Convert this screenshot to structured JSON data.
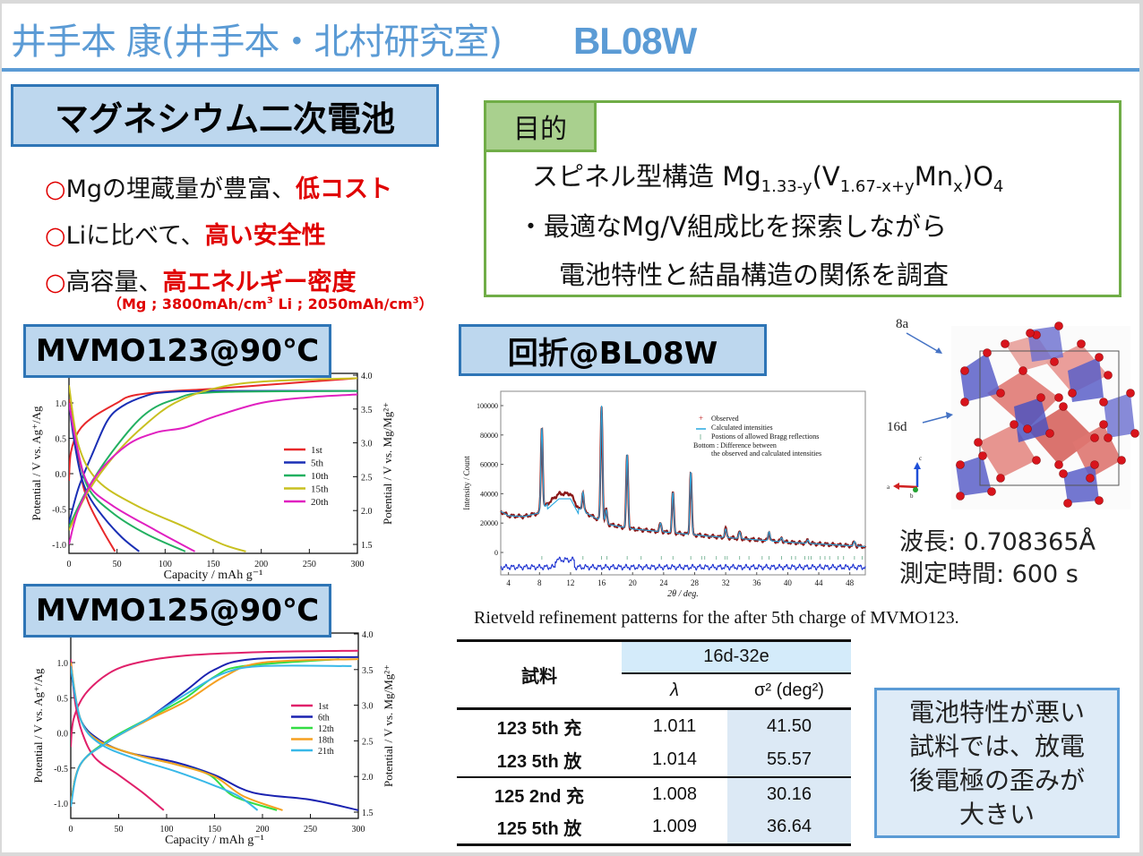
{
  "header": {
    "title": "井手本 康(井手本・北村研究室)",
    "beamline": "BL08W"
  },
  "intro": {
    "heading": "マグネシウム二次電池",
    "bullets": [
      {
        "marker": "○",
        "text": "Mgの埋蔵量が豊富、",
        "highlight": "低コスト"
      },
      {
        "marker": "○",
        "text": "Liに比べて、",
        "highlight": "高い安全性"
      },
      {
        "marker": "○",
        "text": "高容量、",
        "highlight": "高エネルギー密度"
      }
    ],
    "note": {
      "open": "（Mg ; 3800mAh/cm",
      "sup1": "3",
      "mid": " Li ; 2050mAh/cm",
      "sup2": "3",
      "close": "）"
    }
  },
  "purpose": {
    "tag": "目的",
    "line1_prefix": "スピネル型構造 Mg",
    "line1_sub1": "1.33-y",
    "line1_mid1": "(V",
    "line1_sub2": "1.67-x+y",
    "line1_mid2": "Mn",
    "line1_sub3": "x",
    "line1_mid3": ")O",
    "line1_sub4": "4",
    "line2": "・最適なMg/V組成比を探索しながら",
    "line3": "電池特性と結晶構造の関係を調査"
  },
  "sections": {
    "mvmo123": "MVMO123@90℃",
    "mvmo125": "MVMO125@90℃",
    "xrd": "回折@BL08W"
  },
  "structure": {
    "label_8a": "8a",
    "label_16d": "16d",
    "axis_c": "c",
    "axis_a": "a",
    "axis_b": "b"
  },
  "measurement": {
    "wavelength": "波長: 0.708365Å",
    "time": "測定時間: 600 s"
  },
  "caption": "Rietveld refinement patterns for the after 5th charge of MVMO123.",
  "table": {
    "col_sample": "試料",
    "group": "16d-32e",
    "col_lambda": "λ",
    "col_sigma": "σ² (deg²)",
    "rows": [
      {
        "sample": "123 5th 充",
        "lambda": "1.011",
        "sigma": "41.50"
      },
      {
        "sample": "123 5th 放",
        "lambda": "1.014",
        "sigma": "55.57"
      },
      {
        "sample": "125 2nd 充",
        "lambda": "1.008",
        "sigma": "30.16"
      },
      {
        "sample": "125 5th 放",
        "lambda": "1.009",
        "sigma": "36.64"
      }
    ]
  },
  "conclusion": [
    "電池特性が悪い",
    "試料では、放電",
    "後電極の歪みが",
    "大きい"
  ],
  "chart_data": [
    {
      "type": "line",
      "title": "MVMO123@90℃",
      "xlabel": "Capacity / mAh g-1",
      "ylabel": "Potential / V vs. Ag+/Ag",
      "ylabel_right": "Potential / V vs. Mg/Mg2+",
      "xlim": [
        0,
        300
      ],
      "ylim": [
        -1.1,
        1.35
      ],
      "ylim_right": [
        1.4,
        4.0
      ],
      "xticks": [
        0,
        50,
        100,
        150,
        200,
        250,
        300
      ],
      "yticks": [
        -1.0,
        -0.5,
        0.0,
        0.5,
        1.0
      ],
      "yticks_right": [
        1.5,
        2.0,
        2.5,
        3.0,
        3.5,
        4.0
      ],
      "legend_position": "right-middle",
      "series": [
        {
          "name": "1st",
          "color": "#e8282a",
          "charge": [
            [
              0,
              -0.1
            ],
            [
              2,
              0.3
            ],
            [
              10,
              0.6
            ],
            [
              25,
              0.8
            ],
            [
              50,
              1.0
            ],
            [
              65,
              1.1
            ],
            [
              100,
              1.16
            ],
            [
              150,
              1.2
            ],
            [
              200,
              1.25
            ],
            [
              250,
              1.3
            ],
            [
              300,
              1.35
            ]
          ],
          "discharge": [
            [
              0,
              1.05
            ],
            [
              5,
              0.6
            ],
            [
              12,
              0.0
            ],
            [
              20,
              -0.4
            ],
            [
              35,
              -0.8
            ],
            [
              48,
              -1.1
            ]
          ]
        },
        {
          "name": "5th",
          "color": "#1a2fb5",
          "charge": [
            [
              0,
              -0.7
            ],
            [
              10,
              -0.2
            ],
            [
              25,
              0.3
            ],
            [
              40,
              0.75
            ],
            [
              55,
              0.95
            ],
            [
              80,
              1.1
            ],
            [
              100,
              1.15
            ],
            [
              150,
              1.17
            ],
            [
              300,
              1.17
            ]
          ],
          "discharge": [
            [
              0,
              1.0
            ],
            [
              5,
              0.5
            ],
            [
              12,
              0.0
            ],
            [
              20,
              -0.3
            ],
            [
              35,
              -0.6
            ],
            [
              55,
              -0.9
            ],
            [
              73,
              -1.1
            ]
          ]
        },
        {
          "name": "10th",
          "color": "#22b060",
          "charge": [
            [
              0,
              -0.75
            ],
            [
              20,
              -0.2
            ],
            [
              50,
              0.4
            ],
            [
              80,
              0.85
            ],
            [
              110,
              1.05
            ],
            [
              150,
              1.15
            ],
            [
              300,
              1.17
            ]
          ],
          "discharge": [
            [
              0,
              1.0
            ],
            [
              8,
              0.4
            ],
            [
              20,
              -0.2
            ],
            [
              45,
              -0.55
            ],
            [
              80,
              -0.85
            ],
            [
              121,
              -1.1
            ]
          ]
        },
        {
          "name": "15th",
          "color": "#c8c020",
          "charge": [
            [
              0,
              -0.8
            ],
            [
              20,
              -0.25
            ],
            [
              50,
              0.3
            ],
            [
              80,
              0.7
            ],
            [
              110,
              1.0
            ],
            [
              150,
              1.2
            ],
            [
              200,
              1.3
            ],
            [
              300,
              1.35
            ]
          ],
          "discharge": [
            [
              0,
              1.25
            ],
            [
              10,
              0.4
            ],
            [
              30,
              -0.1
            ],
            [
              70,
              -0.45
            ],
            [
              120,
              -0.75
            ],
            [
              160,
              -1.0
            ],
            [
              184,
              -1.1
            ]
          ]
        },
        {
          "name": "20th",
          "color": "#e020c0",
          "charge": [
            [
              0,
              -1.0
            ],
            [
              10,
              -0.5
            ],
            [
              30,
              0.0
            ],
            [
              60,
              0.4
            ],
            [
              90,
              0.58
            ],
            [
              120,
              0.65
            ],
            [
              150,
              0.8
            ],
            [
              200,
              1.0
            ],
            [
              250,
              1.08
            ],
            [
              300,
              1.12
            ]
          ],
          "discharge": [
            [
              0,
              1.0
            ],
            [
              8,
              0.4
            ],
            [
              20,
              -0.15
            ],
            [
              45,
              -0.45
            ],
            [
              90,
              -0.8
            ],
            [
              131,
              -1.1
            ]
          ]
        }
      ]
    },
    {
      "type": "line",
      "title": "MVMO125@90℃",
      "xlabel": "Capacity / mAh g-1",
      "ylabel": "Potential / V vs. Ag+/Ag",
      "ylabel_right": "Potential / V vs. Mg/Mg2+",
      "xlim": [
        0,
        300
      ],
      "ylim": [
        -1.15,
        1.4
      ],
      "ylim_right": [
        1.4,
        4.0
      ],
      "xticks": [
        0,
        50,
        100,
        150,
        200,
        250,
        300
      ],
      "yticks": [
        -1.0,
        -0.5,
        0.0,
        0.5,
        1.0
      ],
      "yticks_right": [
        1.5,
        2.0,
        2.5,
        3.0,
        3.5,
        4.0
      ],
      "legend_position": "right-middle",
      "series": [
        {
          "name": "1st",
          "color": "#e0206a",
          "charge": [
            [
              0,
              -0.2
            ],
            [
              3,
              0.2
            ],
            [
              15,
              0.55
            ],
            [
              40,
              0.85
            ],
            [
              70,
              1.0
            ],
            [
              120,
              1.1
            ],
            [
              200,
              1.15
            ],
            [
              300,
              1.17
            ]
          ],
          "discharge": [
            [
              0,
              1.05
            ],
            [
              5,
              0.4
            ],
            [
              12,
              0.0
            ],
            [
              25,
              -0.35
            ],
            [
              50,
              -0.6
            ],
            [
              75,
              -0.85
            ],
            [
              97,
              -1.1
            ]
          ]
        },
        {
          "name": "6th",
          "color": "#1a22b0",
          "charge": [
            [
              0,
              -1.0
            ],
            [
              10,
              -0.45
            ],
            [
              40,
              -0.1
            ],
            [
              80,
              0.2
            ],
            [
              120,
              0.6
            ],
            [
              150,
              0.9
            ],
            [
              190,
              1.05
            ],
            [
              300,
              1.08
            ]
          ],
          "discharge": [
            [
              0,
              0.9
            ],
            [
              10,
              0.2
            ],
            [
              30,
              -0.1
            ],
            [
              60,
              -0.28
            ],
            [
              110,
              -0.42
            ],
            [
              150,
              -0.6
            ],
            [
              190,
              -0.85
            ],
            [
              250,
              -0.95
            ],
            [
              300,
              -1.1
            ]
          ]
        },
        {
          "name": "12th",
          "color": "#33dd44",
          "charge": [
            [
              0,
              -1.0
            ],
            [
              10,
              -0.45
            ],
            [
              40,
              -0.1
            ],
            [
              80,
              0.2
            ],
            [
              120,
              0.5
            ],
            [
              150,
              0.8
            ],
            [
              180,
              0.95
            ],
            [
              280,
              1.05
            ]
          ],
          "discharge": [
            [
              0,
              0.95
            ],
            [
              10,
              0.2
            ],
            [
              30,
              -0.12
            ],
            [
              70,
              -0.32
            ],
            [
              110,
              -0.45
            ],
            [
              145,
              -0.6
            ],
            [
              170,
              -0.9
            ],
            [
              215,
              -1.1
            ]
          ]
        },
        {
          "name": "18th",
          "color": "#f5a020",
          "charge": [
            [
              0,
              -1.0
            ],
            [
              10,
              -0.45
            ],
            [
              40,
              -0.12
            ],
            [
              80,
              0.18
            ],
            [
              120,
              0.45
            ],
            [
              160,
              0.8
            ],
            [
              200,
              1.0
            ],
            [
              300,
              1.05
            ]
          ],
          "discharge": [
            [
              0,
              1.0
            ],
            [
              10,
              0.2
            ],
            [
              30,
              -0.12
            ],
            [
              70,
              -0.32
            ],
            [
              110,
              -0.45
            ],
            [
              150,
              -0.62
            ],
            [
              180,
              -0.9
            ],
            [
              221,
              -1.1
            ]
          ]
        },
        {
          "name": "21th",
          "color": "#38b8e8",
          "charge": [
            [
              0,
              -1.05
            ],
            [
              10,
              -0.45
            ],
            [
              40,
              -0.12
            ],
            [
              80,
              0.2
            ],
            [
              120,
              0.55
            ],
            [
              160,
              0.85
            ],
            [
              200,
              0.95
            ],
            [
              293,
              0.95
            ]
          ],
          "discharge": [
            [
              0,
              0.95
            ],
            [
              10,
              0.2
            ],
            [
              30,
              -0.15
            ],
            [
              70,
              -0.38
            ],
            [
              110,
              -0.55
            ],
            [
              150,
              -0.75
            ],
            [
              175,
              -0.9
            ],
            [
              195,
              -1.1
            ]
          ]
        }
      ]
    },
    {
      "type": "line",
      "title": "Rietveld refinement patterns for the after 5th charge of MVMO123.",
      "xlabel": "2θ / deg.",
      "ylabel": "Intensity / Count",
      "xlim": [
        3,
        50
      ],
      "ylim": [
        -16000,
        110000
      ],
      "xticks": [
        4,
        8,
        12,
        16,
        20,
        24,
        28,
        32,
        36,
        40,
        44,
        48
      ],
      "yticks": [
        0,
        20000,
        40000,
        60000,
        80000,
        100000
      ],
      "legend_position": "upper-right",
      "legend": [
        "Observed",
        "Calculated intensities",
        "Postions of allowed Bragg reflections",
        "Bottom : Difference between",
        "the observed and calculated intensities"
      ],
      "peaks": [
        {
          "two_theta": 8.3,
          "intensity": 85000
        },
        {
          "two_theta": 13.6,
          "intensity": 41000
        },
        {
          "two_theta": 16.0,
          "intensity": 100000
        },
        {
          "two_theta": 16.6,
          "intensity": 29000
        },
        {
          "two_theta": 19.3,
          "intensity": 67000
        },
        {
          "two_theta": 23.6,
          "intensity": 20000
        },
        {
          "two_theta": 25.2,
          "intensity": 41000
        },
        {
          "two_theta": 27.5,
          "intensity": 55000
        },
        {
          "two_theta": 32.0,
          "intensity": 16000
        },
        {
          "two_theta": 33.8,
          "intensity": 14000
        },
        {
          "two_theta": 37.6,
          "intensity": 14000
        },
        {
          "two_theta": 39.2,
          "intensity": 10000
        },
        {
          "two_theta": 42.6,
          "intensity": 8500
        },
        {
          "two_theta": 48.6,
          "intensity": 7500
        }
      ],
      "background": [
        [
          3,
          28000
        ],
        [
          4,
          25000
        ],
        [
          6,
          24500
        ],
        [
          8,
          27000
        ],
        [
          9,
          33000
        ],
        [
          10.5,
          40000
        ],
        [
          12,
          40000
        ],
        [
          13,
          30000
        ],
        [
          15,
          24000
        ],
        [
          17,
          19000
        ],
        [
          20,
          16000
        ],
        [
          22,
          15000
        ],
        [
          26,
          13000
        ],
        [
          30,
          11000
        ],
        [
          35,
          9000
        ],
        [
          40,
          7000
        ],
        [
          45,
          5500
        ],
        [
          50,
          4000
        ]
      ],
      "bragg_positions": [
        8.3,
        13.6,
        16.0,
        16.7,
        19.3,
        21.1,
        23.7,
        25.2,
        27.5,
        28.9,
        29.3,
        30.8,
        31.9,
        32.2,
        33.8,
        35.0,
        36.7,
        37.6,
        39.2,
        40.5,
        41.0,
        42.2,
        42.7,
        43.0,
        44.2,
        44.8,
        45.4,
        46.5,
        47.2,
        48.6,
        49.6
      ],
      "difference_offset": -10000
    }
  ]
}
